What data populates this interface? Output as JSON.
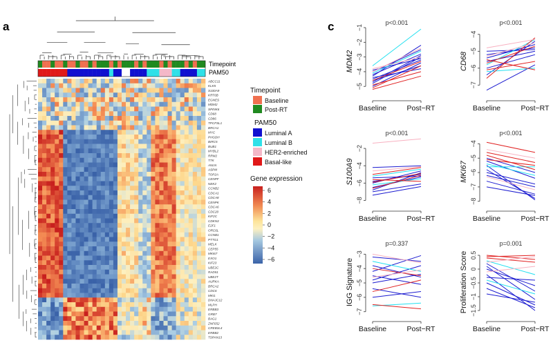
{
  "panel_a": {
    "label": "a",
    "annotation_labels": [
      "Timepoint",
      "PAM50"
    ],
    "genes": [
      "ABCC11",
      "KLK5",
      "S100A9",
      "KRT6B",
      "EGNES",
      "MDM2",
      "SPINK6",
      "CD68",
      "CD86",
      "TPCFSL1",
      "BRCA1",
      "MYC",
      "PHGDH",
      "BIRC5",
      "BUB1",
      "MYBL2",
      "RRM2",
      "TTK",
      "ANLN",
      "ASPM",
      "TOP2A",
      "CENPF",
      "NEK2",
      "CCNB2",
      "CDCA1",
      "CDCA8",
      "CENPK",
      "CDCA6",
      "CDC20",
      "KIF2C",
      "CDKN3",
      "E2F1",
      "ORC6L",
      "CCNB1",
      "PTTG1",
      "MELK",
      "CEP55",
      "MKI67",
      "EXO1",
      "KIF23",
      "UBE2C",
      "RAD51",
      "UBE2T",
      "AURKA",
      "BRCA2",
      "CDC6",
      "MKI1",
      "DNAJC12",
      "MLPH",
      "ERBB3",
      "GRB7",
      "BAG1",
      "ZNF652",
      "CREB3L4",
      "ERBB2",
      "TSPAN13"
    ],
    "legend": {
      "timepoint_title": "Timepoint",
      "timepoint": [
        {
          "label": "Baseline",
          "color": "#f07050"
        },
        {
          "label": "Post-RT",
          "color": "#208a20"
        }
      ],
      "pam50_title": "PAM50",
      "pam50": [
        {
          "label": "Luminal A",
          "color": "#1010d0"
        },
        {
          "label": "Luminal B",
          "color": "#30e0e8"
        },
        {
          "label": "HER2-enriched",
          "color": "#f4b8c8"
        },
        {
          "label": "Basal-like",
          "color": "#e01818"
        }
      ],
      "expr_title": "Gene expression",
      "expr_ticks": [
        "6",
        "4",
        "2",
        "0",
        "−2",
        "−4",
        "−6"
      ]
    }
  },
  "panel_c": {
    "label": "c",
    "x_categories": [
      "Baseline",
      "Post−RT"
    ],
    "series_colors": {
      "luminal_a": "#1a1ad0",
      "luminal_b": "#20e0f0",
      "her2": "#f8b0c0",
      "basal": "#e02020"
    },
    "subplots": [
      {
        "ylabel": "MDM2",
        "italic": true,
        "pvalue": "p<0.001",
        "yticks": [
          -1,
          -2,
          -3,
          -4,
          -5
        ],
        "ylim": [
          -5.6,
          -1
        ],
        "lines": [
          [
            -4.5,
            -3.2,
            "b"
          ],
          [
            -4.2,
            -2.8,
            "b"
          ],
          [
            -4.8,
            -3.0,
            "b"
          ],
          [
            -4.0,
            -2.5,
            "b"
          ],
          [
            -4.6,
            -3.6,
            "b"
          ],
          [
            -5.0,
            -3.4,
            "b"
          ],
          [
            -4.3,
            -2.2,
            "b"
          ],
          [
            -3.9,
            -3.1,
            "b"
          ],
          [
            -4.7,
            -2.9,
            "b"
          ],
          [
            -4.4,
            -3.8,
            "b"
          ],
          [
            -3.6,
            -1.1,
            "c"
          ],
          [
            -4.1,
            -2.6,
            "c"
          ],
          [
            -5.2,
            -4.3,
            "r"
          ],
          [
            -4.9,
            -4.0,
            "r"
          ],
          [
            -5.1,
            -3.6,
            "r"
          ],
          [
            -4.6,
            -3.3,
            "r"
          ],
          [
            -3.8,
            -3.0,
            "p"
          ],
          [
            -4.0,
            -2.4,
            "p"
          ]
        ]
      },
      {
        "ylabel": "CD68",
        "italic": true,
        "pvalue": "p<0.001",
        "yticks": [
          -4,
          -5,
          -6,
          -7
        ],
        "ylim": [
          -7.6,
          -3.6
        ],
        "lines": [
          [
            -5.0,
            -4.9,
            "b"
          ],
          [
            -5.4,
            -4.6,
            "b"
          ],
          [
            -6.0,
            -5.2,
            "b"
          ],
          [
            -5.6,
            -5.0,
            "b"
          ],
          [
            -6.4,
            -4.4,
            "b"
          ],
          [
            -7.3,
            -5.8,
            "b"
          ],
          [
            -5.2,
            -4.8,
            "b"
          ],
          [
            -6.2,
            -6.0,
            "c"
          ],
          [
            -5.8,
            -4.3,
            "c"
          ],
          [
            -6.6,
            -4.2,
            "r"
          ],
          [
            -5.5,
            -6.1,
            "r"
          ],
          [
            -6.1,
            -5.6,
            "r"
          ],
          [
            -5.7,
            -4.7,
            "r"
          ],
          [
            -4.8,
            -4.3,
            "p"
          ],
          [
            -5.3,
            -4.5,
            "p"
          ]
        ]
      },
      {
        "ylabel": "S100A9",
        "italic": true,
        "pvalue": "p<0.001",
        "yticks": [
          -2,
          -4,
          -6,
          -8
        ],
        "ylim": [
          -8.6,
          -0.8
        ],
        "lines": [
          [
            -4.2,
            -4.0,
            "b"
          ],
          [
            -5.8,
            -5.0,
            "b"
          ],
          [
            -6.5,
            -5.3,
            "b"
          ],
          [
            -7.0,
            -6.1,
            "b"
          ],
          [
            -6.0,
            -4.6,
            "b"
          ],
          [
            -5.4,
            -5.2,
            "b"
          ],
          [
            -7.4,
            -6.4,
            "b"
          ],
          [
            -6.8,
            -4.8,
            "b"
          ],
          [
            -5.2,
            -4.4,
            "c"
          ],
          [
            -6.2,
            -5.5,
            "c"
          ],
          [
            -5.0,
            -4.2,
            "r"
          ],
          [
            -5.6,
            -5.8,
            "r"
          ],
          [
            -6.6,
            -5.1,
            "r"
          ],
          [
            -5.9,
            -4.9,
            "r"
          ],
          [
            -1.4,
            -0.9,
            "p"
          ],
          [
            -4.6,
            -4.1,
            "p"
          ]
        ]
      },
      {
        "ylabel": "MKI67",
        "italic": true,
        "pvalue": "p<0.001",
        "yticks": [
          -4,
          -5,
          -6,
          -7,
          -8
        ],
        "ylim": [
          -8.3,
          -3.6
        ],
        "lines": [
          [
            -5.2,
            -6.4,
            "b"
          ],
          [
            -5.8,
            -7.8,
            "b"
          ],
          [
            -6.2,
            -7.0,
            "b"
          ],
          [
            -5.5,
            -7.9,
            "b"
          ],
          [
            -6.6,
            -7.5,
            "b"
          ],
          [
            -5.0,
            -6.0,
            "b"
          ],
          [
            -7.0,
            -7.6,
            "b"
          ],
          [
            -6.0,
            -6.8,
            "b"
          ],
          [
            -5.4,
            -6.2,
            "c"
          ],
          [
            -5.6,
            -5.6,
            "c"
          ],
          [
            -3.9,
            -4.6,
            "r"
          ],
          [
            -4.6,
            -5.3,
            "r"
          ],
          [
            -5.1,
            -5.5,
            "r"
          ],
          [
            -4.8,
            -5.8,
            "r"
          ],
          [
            -4.4,
            -5.0,
            "p"
          ],
          [
            -6.3,
            -7.2,
            "p"
          ]
        ]
      },
      {
        "ylabel": "IGG Signature",
        "italic": false,
        "pvalue": "p=0.337",
        "yticks": [
          -3,
          -4,
          -5,
          -6,
          -7
        ],
        "ylim": [
          -7.3,
          -2.6
        ],
        "lines": [
          [
            -3.2,
            -3.5,
            "b"
          ],
          [
            -3.8,
            -4.6,
            "b"
          ],
          [
            -4.5,
            -5.1,
            "b"
          ],
          [
            -5.0,
            -4.4,
            "b"
          ],
          [
            -5.4,
            -6.0,
            "b"
          ],
          [
            -4.2,
            -3.1,
            "b"
          ],
          [
            -6.0,
            -5.6,
            "b"
          ],
          [
            -4.8,
            -3.8,
            "b"
          ],
          [
            -3.5,
            -4.2,
            "c"
          ],
          [
            -6.6,
            -6.4,
            "c"
          ],
          [
            -4.0,
            -4.5,
            "r"
          ],
          [
            -6.5,
            -6.8,
            "r"
          ],
          [
            -5.6,
            -4.8,
            "r"
          ],
          [
            -3.0,
            -3.6,
            "p"
          ],
          [
            -4.6,
            -4.1,
            "p"
          ]
        ]
      },
      {
        "ylabel": "Proliferation Score",
        "italic": false,
        "pvalue": "p=0.001",
        "yticks": [
          0.5,
          0,
          -0.5,
          -1,
          -1.5
        ],
        "ylim": [
          -1.7,
          0.75
        ],
        "lines": [
          [
            0.2,
            -0.8,
            "b"
          ],
          [
            -0.2,
            -1.5,
            "b"
          ],
          [
            0.0,
            -0.6,
            "b"
          ],
          [
            -0.5,
            -1.3,
            "b"
          ],
          [
            0.1,
            -1.1,
            "b"
          ],
          [
            -0.7,
            -1.4,
            "b"
          ],
          [
            -0.3,
            -0.4,
            "b"
          ],
          [
            -0.9,
            -1.2,
            "b"
          ],
          [
            0.3,
            -0.2,
            "c"
          ],
          [
            -0.4,
            -0.9,
            "c"
          ],
          [
            0.45,
            0.5,
            "r"
          ],
          [
            0.4,
            0.25,
            "r"
          ],
          [
            0.5,
            0.35,
            "r"
          ],
          [
            0.25,
            0.45,
            "p"
          ],
          [
            -0.1,
            0.1,
            "p"
          ]
        ]
      }
    ]
  }
}
